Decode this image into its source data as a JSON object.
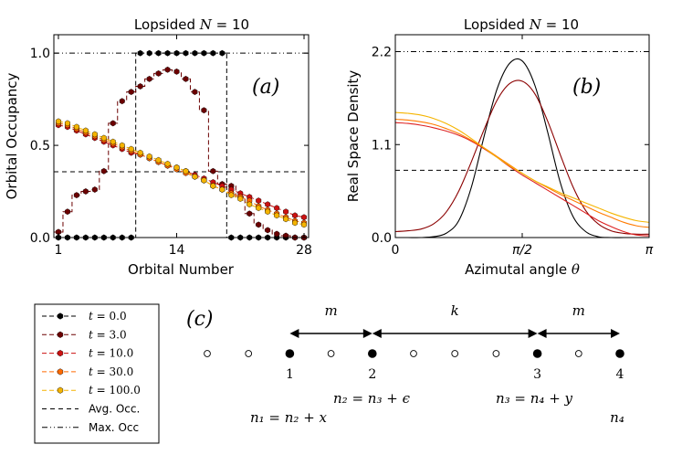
{
  "chart_data": [
    {
      "panel": "a",
      "type": "line",
      "title_text": "Lopsided ",
      "title_math": "N",
      "title_rest": " = 10",
      "panel_label": "(a)",
      "xlabel": "Orbital Number",
      "ylabel": "Orbital Occupancy",
      "xlim": [
        0.5,
        28.5
      ],
      "ylim": [
        0,
        1.1
      ],
      "xticks": [
        1,
        14,
        28
      ],
      "yticks": [
        0.0,
        0.5,
        1.0
      ],
      "ytick_labels": [
        "0.0",
        "0.5",
        "1.0"
      ],
      "avg_occupancy": 0.357,
      "max_occupancy": 1.0,
      "x": [
        1,
        2,
        3,
        4,
        5,
        6,
        7,
        8,
        9,
        10,
        11,
        12,
        13,
        14,
        15,
        16,
        17,
        18,
        19,
        20,
        21,
        22,
        23,
        24,
        25,
        26,
        27,
        28
      ],
      "series": [
        {
          "name": "t = 0.0",
          "color": "#000000",
          "step": true,
          "values": [
            0,
            0,
            0,
            0,
            0,
            0,
            0,
            0,
            0,
            1,
            1,
            1,
            1,
            1,
            1,
            1,
            1,
            1,
            1,
            0,
            0,
            0,
            0,
            0,
            0,
            0,
            0,
            0
          ]
        },
        {
          "name": "t = 3.0",
          "color": "#6b0000",
          "step": true,
          "values": [
            0.03,
            0.14,
            0.23,
            0.25,
            0.26,
            0.36,
            0.62,
            0.74,
            0.79,
            0.82,
            0.86,
            0.89,
            0.91,
            0.9,
            0.86,
            0.79,
            0.69,
            0.36,
            0.29,
            0.28,
            0.22,
            0.13,
            0.07,
            0.04,
            0.02,
            0.01,
            0.0,
            0.0
          ]
        },
        {
          "name": "t = 10.0",
          "color": "#cc1111",
          "step": false,
          "values": [
            0.61,
            0.6,
            0.58,
            0.56,
            0.54,
            0.52,
            0.5,
            0.48,
            0.46,
            0.45,
            0.43,
            0.41,
            0.39,
            0.38,
            0.36,
            0.34,
            0.32,
            0.3,
            0.28,
            0.26,
            0.24,
            0.22,
            0.2,
            0.18,
            0.16,
            0.14,
            0.12,
            0.11
          ]
        },
        {
          "name": "t = 30.0",
          "color": "#ff6a00",
          "step": false,
          "values": [
            0.62,
            0.61,
            0.59,
            0.57,
            0.55,
            0.53,
            0.51,
            0.49,
            0.47,
            0.45,
            0.43,
            0.41,
            0.39,
            0.37,
            0.35,
            0.33,
            0.31,
            0.28,
            0.26,
            0.24,
            0.22,
            0.2,
            0.17,
            0.15,
            0.13,
            0.11,
            0.09,
            0.08
          ]
        },
        {
          "name": "t = 100.0",
          "color": "#f5b400",
          "step": false,
          "values": [
            0.63,
            0.62,
            0.6,
            0.58,
            0.56,
            0.54,
            0.52,
            0.5,
            0.48,
            0.46,
            0.44,
            0.42,
            0.4,
            0.38,
            0.36,
            0.33,
            0.31,
            0.28,
            0.26,
            0.23,
            0.21,
            0.18,
            0.16,
            0.14,
            0.12,
            0.1,
            0.08,
            0.07
          ]
        }
      ]
    },
    {
      "panel": "b",
      "type": "line",
      "title_text": "Lopsided ",
      "title_math": "N",
      "title_rest": " = 10",
      "panel_label": "(b)",
      "xlabel_text": "Azimutal angle ",
      "xlabel_math": "θ",
      "ylabel": "Real Space Density",
      "xlim": [
        0,
        3.14159
      ],
      "ylim": [
        0,
        2.4
      ],
      "xticks": [
        0,
        1.5708,
        3.14159
      ],
      "xtick_labels": [
        "0",
        "π/2",
        "π"
      ],
      "yticks": [
        0.0,
        1.1,
        2.2
      ],
      "ytick_labels": [
        "0.0",
        "1.1",
        "2.2"
      ],
      "avg_density": 0.796,
      "max_density": 2.2,
      "theta": [
        0,
        0.1571,
        0.3142,
        0.4712,
        0.6283,
        0.7854,
        0.9425,
        1.0996,
        1.2566,
        1.4137,
        1.5708,
        1.7279,
        1.885,
        2.042,
        2.1991,
        2.3562,
        2.5133,
        2.6704,
        2.8274,
        2.9845,
        3.1416
      ],
      "series": [
        {
          "name": "t = 0.0",
          "color": "#000000",
          "values": [
            0.0,
            0.0,
            0.0,
            0.01,
            0.05,
            0.2,
            0.6,
            1.2,
            1.75,
            2.06,
            2.09,
            1.8,
            1.25,
            0.65,
            0.25,
            0.07,
            0.01,
            0.0,
            0.0,
            0.0,
            0.0
          ]
        },
        {
          "name": "t = 3.0",
          "color": "#8b0000",
          "values": [
            0.07,
            0.08,
            0.1,
            0.16,
            0.3,
            0.55,
            0.9,
            1.28,
            1.62,
            1.82,
            1.85,
            1.7,
            1.38,
            0.98,
            0.6,
            0.32,
            0.16,
            0.08,
            0.05,
            0.04,
            0.04
          ]
        },
        {
          "name": "t = 10.0",
          "color": "#dd2222",
          "values": [
            1.36,
            1.35,
            1.33,
            1.3,
            1.26,
            1.21,
            1.14,
            1.05,
            0.95,
            0.84,
            0.74,
            0.65,
            0.56,
            0.47,
            0.38,
            0.29,
            0.2,
            0.13,
            0.07,
            0.03,
            0.02
          ]
        },
        {
          "name": "t = 30.0",
          "color": "#ff7a00",
          "values": [
            1.4,
            1.39,
            1.37,
            1.34,
            1.29,
            1.23,
            1.15,
            1.06,
            0.96,
            0.86,
            0.76,
            0.67,
            0.59,
            0.51,
            0.44,
            0.37,
            0.3,
            0.24,
            0.18,
            0.14,
            0.12
          ]
        },
        {
          "name": "t = 100.0",
          "color": "#f5b400",
          "values": [
            1.48,
            1.47,
            1.45,
            1.41,
            1.35,
            1.27,
            1.17,
            1.06,
            0.95,
            0.85,
            0.76,
            0.67,
            0.6,
            0.53,
            0.47,
            0.41,
            0.35,
            0.29,
            0.24,
            0.2,
            0.18
          ]
        }
      ]
    }
  ],
  "legend": {
    "entries": [
      {
        "label_math": "t",
        "label_rest": " = 0.0",
        "color": "#000000",
        "style": "dash-marker"
      },
      {
        "label_math": "t",
        "label_rest": " = 3.0",
        "color": "#6b0000",
        "style": "dash-marker"
      },
      {
        "label_math": "t",
        "label_rest": " = 10.0",
        "color": "#cc1111",
        "style": "dash-marker"
      },
      {
        "label_math": "t",
        "label_rest": " = 30.0",
        "color": "#ff6a00",
        "style": "dash-marker"
      },
      {
        "label_math": "t",
        "label_rest": " = 100.0",
        "color": "#f5b400",
        "style": "dash-marker"
      },
      {
        "label_text": "Avg. Occ.",
        "color": "#000000",
        "style": "dashed"
      },
      {
        "label_text": "Max. Occ",
        "color": "#000000",
        "style": "dashdot"
      }
    ]
  },
  "diagram": {
    "panel_label": "(c)",
    "site_count": 11,
    "filled_sites": [
      3,
      5,
      9,
      11
    ],
    "site_numbers": [
      "1",
      "2",
      "3",
      "4"
    ],
    "arrows": [
      {
        "label": "m",
        "from_site": 3,
        "to_site": 5
      },
      {
        "label": "k",
        "from_site": 5,
        "to_site": 9
      },
      {
        "label": "m",
        "from_site": 9,
        "to_site": 11
      }
    ],
    "equations": [
      "n₁ = n₂ + x",
      "n₂ = n₃ + ϵ",
      "n₃ = n₄ + y",
      "n₄"
    ]
  }
}
